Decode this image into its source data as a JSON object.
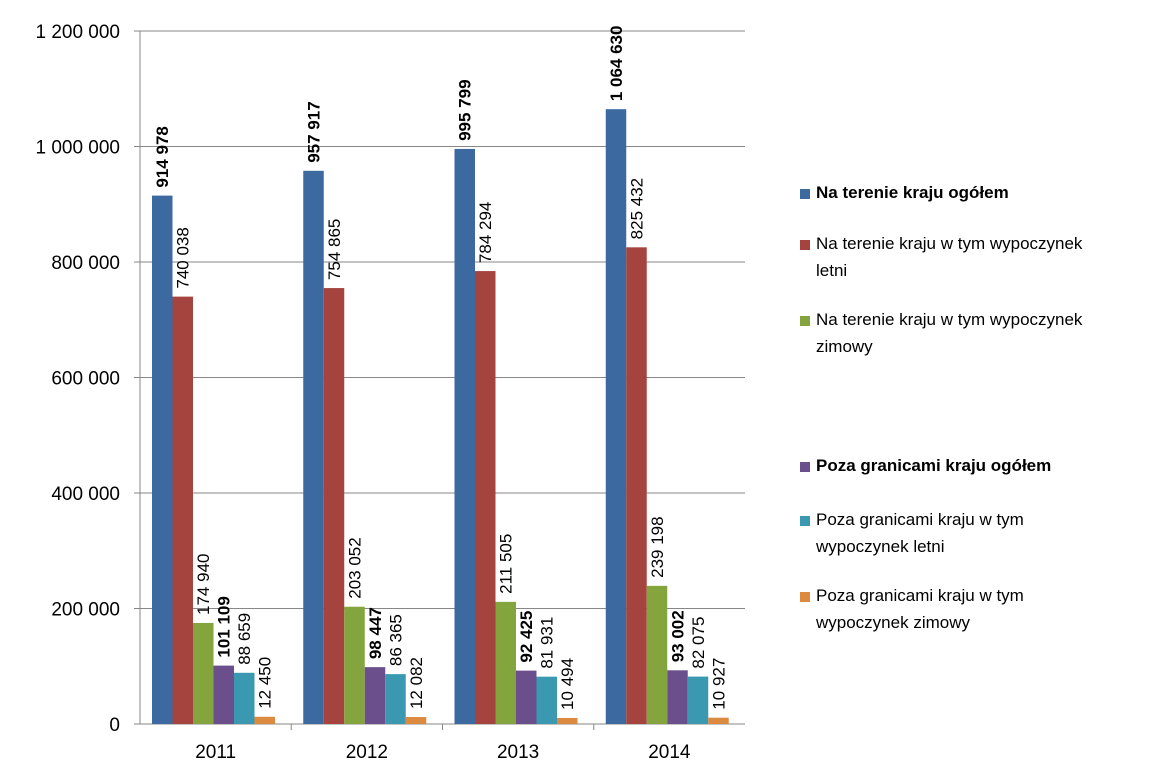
{
  "chart_data": {
    "type": "bar",
    "categories": [
      "2011",
      "2012",
      "2013",
      "2014"
    ],
    "ylim": [
      0,
      1200000
    ],
    "yticks": [
      0,
      200000,
      400000,
      600000,
      800000,
      1000000,
      1200000
    ],
    "ytick_labels": [
      "0",
      "200 000",
      "400 000",
      "600 000",
      "800 000",
      "1 000 000",
      "1 200 000"
    ],
    "grid": true,
    "legend_position": "right",
    "series": [
      {
        "name": "Na terenie kraju ogółem",
        "color": "#3C6AA0",
        "bold": true,
        "values": [
          914978,
          957917,
          995799,
          1064630
        ],
        "labels": [
          "914 978",
          "957 917",
          "995 799",
          "1 064 630"
        ]
      },
      {
        "name": "Na terenie kraju w tym wypoczynek letni",
        "color": "#A5443F",
        "bold": false,
        "values": [
          740038,
          754865,
          784294,
          825432
        ],
        "labels": [
          "740 038",
          "754 865",
          "784 294",
          "825 432"
        ]
      },
      {
        "name": "Na terenie kraju w tym wypoczynek zimowy",
        "color": "#84A43E",
        "bold": false,
        "values": [
          174940,
          203052,
          211505,
          239198
        ],
        "labels": [
          "174 940",
          "203 052",
          "211 505",
          "239 198"
        ]
      },
      {
        "name": "Poza granicami kraju ogółem",
        "color": "#6B4F8C",
        "bold": true,
        "values": [
          101109,
          98447,
          92425,
          93002
        ],
        "labels": [
          "101 109",
          "98 447",
          "92 425",
          "93 002"
        ]
      },
      {
        "name": "Poza granicami kraju w tym wypoczynek letni",
        "color": "#3A98B0",
        "bold": false,
        "values": [
          88659,
          86365,
          81931,
          82075
        ],
        "labels": [
          "88 659",
          "86 365",
          "81 931",
          "82 075"
        ]
      },
      {
        "name": "Poza granicami kraju w tym wypoczynek zimowy",
        "color": "#DB8A3F",
        "bold": false,
        "values": [
          12450,
          12082,
          10494,
          10927
        ],
        "labels": [
          "12 450",
          "12 082",
          "10 494",
          "10 927"
        ]
      }
    ]
  },
  "legend": {
    "items": [
      {
        "line1": "Na terenie kraju ogółem",
        "line2": ""
      },
      {
        "line1": "Na terenie kraju w tym wypoczynek",
        "line2": "letni"
      },
      {
        "line1": "Na terenie kraju w tym wypoczynek",
        "line2": "zimowy"
      },
      {
        "line1": "Poza granicami kraju ogółem",
        "line2": ""
      },
      {
        "line1": "Poza granicami kraju w tym",
        "line2": "wypoczynek letni"
      },
      {
        "line1": "Poza granicami kraju w tym",
        "line2": "wypoczynek zimowy"
      }
    ]
  }
}
